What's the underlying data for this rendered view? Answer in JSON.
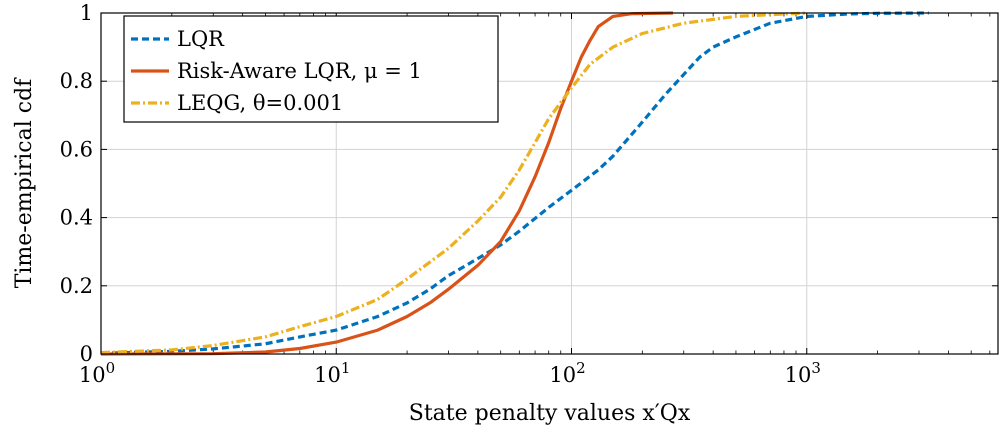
{
  "chart_data": {
    "type": "line",
    "xlabel": "State penalty values x′Qx",
    "ylabel": "Time-empirical cdf",
    "xscale": "log",
    "xlim": [
      1,
      6500
    ],
    "ylim": [
      0,
      1
    ],
    "grid": true,
    "legend_position": "top-left",
    "x_ticks": [
      {
        "value": 1,
        "base": "10",
        "exp": "0"
      },
      {
        "value": 10,
        "base": "10",
        "exp": "1"
      },
      {
        "value": 100,
        "base": "10",
        "exp": "2"
      },
      {
        "value": 1000,
        "base": "10",
        "exp": "3"
      }
    ],
    "y_ticks": [
      {
        "value": 0,
        "label": "0"
      },
      {
        "value": 0.2,
        "label": "0.2"
      },
      {
        "value": 0.4,
        "label": "0.4"
      },
      {
        "value": 0.6,
        "label": "0.6"
      },
      {
        "value": 0.8,
        "label": "0.8"
      },
      {
        "value": 1,
        "label": "1"
      }
    ],
    "series": [
      {
        "name": "LQR",
        "color": "#0072BD",
        "style": "dashed",
        "points": [
          [
            1,
            0.002
          ],
          [
            2,
            0.008
          ],
          [
            3,
            0.015
          ],
          [
            5,
            0.03
          ],
          [
            7,
            0.05
          ],
          [
            10,
            0.07
          ],
          [
            15,
            0.11
          ],
          [
            20,
            0.15
          ],
          [
            25,
            0.19
          ],
          [
            30,
            0.23
          ],
          [
            40,
            0.28
          ],
          [
            50,
            0.32
          ],
          [
            60,
            0.36
          ],
          [
            80,
            0.43
          ],
          [
            100,
            0.48
          ],
          [
            130,
            0.54
          ],
          [
            150,
            0.58
          ],
          [
            200,
            0.68
          ],
          [
            250,
            0.76
          ],
          [
            300,
            0.82
          ],
          [
            350,
            0.87
          ],
          [
            400,
            0.9
          ],
          [
            500,
            0.93
          ],
          [
            700,
            0.97
          ],
          [
            1000,
            0.99
          ],
          [
            1500,
            0.997
          ],
          [
            2000,
            0.999
          ],
          [
            3300,
            1.0
          ]
        ]
      },
      {
        "name": "Risk-Aware LQR, μ = 1",
        "color": "#D95319",
        "style": "solid",
        "points": [
          [
            1,
            0
          ],
          [
            3,
            0.001
          ],
          [
            5,
            0.006
          ],
          [
            7,
            0.016
          ],
          [
            10,
            0.035
          ],
          [
            15,
            0.07
          ],
          [
            20,
            0.11
          ],
          [
            25,
            0.15
          ],
          [
            30,
            0.19
          ],
          [
            40,
            0.26
          ],
          [
            50,
            0.33
          ],
          [
            60,
            0.42
          ],
          [
            70,
            0.52
          ],
          [
            80,
            0.62
          ],
          [
            90,
            0.72
          ],
          [
            100,
            0.8
          ],
          [
            110,
            0.87
          ],
          [
            120,
            0.92
          ],
          [
            130,
            0.96
          ],
          [
            150,
            0.99
          ],
          [
            180,
            0.998
          ],
          [
            270,
            1.0
          ]
        ]
      },
      {
        "name": "LEQG, θ=0.001",
        "color": "#EDB120",
        "style": "dashdot",
        "points": [
          [
            1,
            0.004
          ],
          [
            2,
            0.012
          ],
          [
            3,
            0.025
          ],
          [
            5,
            0.05
          ],
          [
            7,
            0.08
          ],
          [
            10,
            0.11
          ],
          [
            15,
            0.16
          ],
          [
            20,
            0.22
          ],
          [
            30,
            0.31
          ],
          [
            40,
            0.39
          ],
          [
            50,
            0.46
          ],
          [
            60,
            0.54
          ],
          [
            70,
            0.62
          ],
          [
            80,
            0.69
          ],
          [
            100,
            0.78
          ],
          [
            120,
            0.85
          ],
          [
            150,
            0.9
          ],
          [
            200,
            0.94
          ],
          [
            300,
            0.97
          ],
          [
            500,
            0.99
          ],
          [
            800,
            0.997
          ],
          [
            1000,
            1.0
          ]
        ]
      }
    ]
  }
}
